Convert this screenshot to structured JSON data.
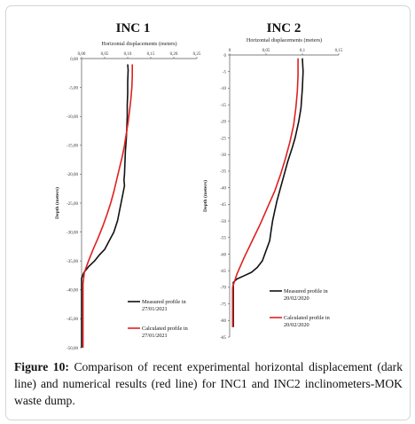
{
  "caption": {
    "label": "Figure 10:",
    "text": "Comparison of recent experimental horizontal displacement (dark line) and numerical results (red line) for INC1 and INC2 inclinometers-MOK waste dump."
  },
  "colors": {
    "measured": "#111111",
    "calculated": "#e02020",
    "axis": "#555555"
  },
  "chart_data": [
    {
      "type": "line",
      "title": "INC 1",
      "xlabel": "Horizontal displacements (meters)",
      "ylabel": "Depth (meters)",
      "xlim": [
        0,
        0.25
      ],
      "ylim": [
        0,
        -50
      ],
      "xticks": [
        "0,00",
        "0,05",
        "0,10",
        "0,15",
        "0,20",
        "0,25"
      ],
      "yticks": [
        "0,00",
        "-5,00",
        "-10,00",
        "-15,00",
        "-20,00",
        "-25,00",
        "-30,00",
        "-35,00",
        "-40,00",
        "-45,00",
        "-50,00"
      ],
      "legend": [
        "Measured profile in 27/01/2021",
        "Calculated profile in 27/01/2021"
      ],
      "legend_position": "bottom-right",
      "series": [
        {
          "name": "Measured profile in 27/01/2021",
          "x": [
            0.1,
            0.101,
            0.1,
            0.1,
            0.099,
            0.099,
            0.098,
            0.097,
            0.095,
            0.094,
            0.093,
            0.092,
            0.093,
            0.088,
            0.083,
            0.078,
            0.07,
            0.06,
            0.05,
            0.038,
            0.028,
            0.015,
            0.005,
            0.0,
            0.0
          ],
          "y": [
            -1,
            -2,
            -4,
            -6,
            -8,
            -10,
            -12,
            -14,
            -16,
            -18,
            -20,
            -21,
            -22,
            -24,
            -26,
            -28,
            -30,
            -31.5,
            -33,
            -34,
            -35,
            -36,
            -37,
            -38,
            -50
          ]
        },
        {
          "name": "Calculated profile in 27/01/2021",
          "x": [
            0.11,
            0.11,
            0.109,
            0.107,
            0.104,
            0.101,
            0.097,
            0.093,
            0.088,
            0.082,
            0.076,
            0.07,
            0.063,
            0.055,
            0.046,
            0.036,
            0.025,
            0.015,
            0.006,
            0.003,
            0.003
          ],
          "y": [
            -1,
            -3,
            -5,
            -7,
            -9,
            -11,
            -13,
            -15,
            -17,
            -19,
            -21,
            -23,
            -25,
            -27,
            -29,
            -31,
            -33,
            -35,
            -37,
            -39,
            -50
          ]
        }
      ]
    },
    {
      "type": "line",
      "title": "INC 2",
      "xlabel": "Horizontal displacements (meters)",
      "ylabel": "Depth (meters)",
      "xlim": [
        0,
        0.15
      ],
      "ylim": [
        0,
        -85
      ],
      "xticks": [
        "0",
        "0,05",
        "0,1",
        "0,15"
      ],
      "yticks": [
        "0",
        "-5",
        "-10",
        "-15",
        "-20",
        "-25",
        "-30",
        "-35",
        "-40",
        "-45",
        "-50",
        "-55",
        "-60",
        "-65",
        "-70",
        "-75",
        "-80",
        "-85"
      ],
      "legend": [
        "Measured profile in 20/02/2020",
        "Calculated profile in 20/02/2020"
      ],
      "legend_position": "bottom-right",
      "series": [
        {
          "name": "Measured profile in 20/02/2020",
          "x": [
            0.1,
            0.101,
            0.1,
            0.099,
            0.098,
            0.095,
            0.09,
            0.086,
            0.08,
            0.075,
            0.07,
            0.065,
            0.062,
            0.059,
            0.057,
            0.055,
            0.05,
            0.045,
            0.038,
            0.03,
            0.02,
            0.01,
            0.005,
            0.005
          ],
          "y": [
            -1,
            -5,
            -10,
            -13,
            -16,
            -20,
            -25,
            -28,
            -32,
            -36,
            -40,
            -44,
            -47,
            -50,
            -53,
            -56,
            -59,
            -62,
            -64,
            -65.5,
            -66.5,
            -67.5,
            -68.5,
            -82
          ]
        },
        {
          "name": "Calculated profile in 20/02/2020",
          "x": [
            0.094,
            0.094,
            0.093,
            0.091,
            0.088,
            0.083,
            0.077,
            0.07,
            0.062,
            0.052,
            0.042,
            0.031,
            0.02,
            0.01,
            0.004,
            0.004
          ],
          "y": [
            -1,
            -6,
            -11,
            -16,
            -21,
            -26,
            -31,
            -36,
            -41,
            -46,
            -51,
            -56,
            -61,
            -66,
            -70,
            -82
          ]
        }
      ]
    }
  ]
}
